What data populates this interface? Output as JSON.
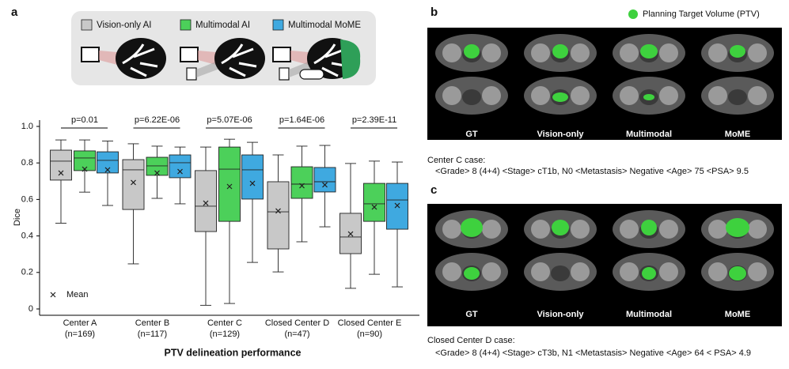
{
  "chart_data": {
    "type": "box",
    "ylabel": "Dice",
    "xlabel": "PTV delineation performance",
    "categories": [
      "Center A",
      "Center B",
      "Center C",
      "Closed Center D",
      "Closed Center E"
    ],
    "category_counts": [
      "(n=169)",
      "(n=117)",
      "(n=129)",
      "(n=47)",
      "(n=90)"
    ],
    "pvalues": [
      "p=0.01",
      "p=6.22E-06",
      "p=5.07E-06",
      "p=1.64E-06",
      "p=2.39E-11"
    ],
    "mean_legend": "Mean",
    "ylim": [
      0,
      1.0
    ],
    "yticks": [
      0,
      0.2,
      0.4,
      0.6,
      0.8,
      {
        "value": 1,
        "label": "1.0"
      }
    ],
    "series": [
      {
        "name": "Vision-only AI",
        "color": "#c8c8c8",
        "whisker_low": [
          0.47,
          0.247,
          0.02,
          0.203,
          0.113
        ],
        "q1": [
          0.706,
          0.545,
          0.424,
          0.329,
          0.303
        ],
        "median": [
          0.81,
          0.762,
          0.563,
          0.532,
          0.394
        ],
        "q3": [
          0.87,
          0.818,
          0.758,
          0.697,
          0.524
        ],
        "whisker_high": [
          0.926,
          0.905,
          0.887,
          0.844,
          0.797
        ],
        "mean": [
          0.745,
          0.693,
          0.58,
          0.537,
          0.411
        ]
      },
      {
        "name": "Multimodal AI",
        "color": "#4cd05a",
        "whisker_low": [
          0.64,
          0.606,
          0.03,
          0.368,
          0.19
        ],
        "q1": [
          0.758,
          0.732,
          0.48,
          0.606,
          0.48
        ],
        "median": [
          0.827,
          0.784,
          0.766,
          0.684,
          0.576
        ],
        "q3": [
          0.866,
          0.831,
          0.887,
          0.779,
          0.688
        ],
        "whisker_high": [
          0.926,
          0.892,
          0.93,
          0.892,
          0.81
        ],
        "mean": [
          0.766,
          0.745,
          0.671,
          0.675,
          0.558
        ]
      },
      {
        "name": "Multimodal MoME",
        "color": "#3fa9e0",
        "whisker_low": [
          0.567,
          0.576,
          0.255,
          0.45,
          0.121
        ],
        "q1": [
          0.745,
          0.719,
          0.602,
          0.641,
          0.437
        ],
        "median": [
          0.814,
          0.801,
          0.762,
          0.697,
          0.597
        ],
        "q3": [
          0.861,
          0.844,
          0.844,
          0.775,
          0.688
        ],
        "whisker_high": [
          0.92,
          0.887,
          0.913,
          0.896,
          0.805
        ],
        "mean": [
          0.762,
          0.753,
          0.688,
          0.68,
          0.567
        ]
      }
    ]
  },
  "figure": {
    "panel_labels": [
      "a",
      "b",
      "c"
    ],
    "ptv_legend": "Planning Target Volume (PTV)",
    "image_columns": [
      "GT",
      "Vision-only",
      "Multimodal",
      "MoME"
    ],
    "cases": [
      {
        "title": "Center C case:",
        "details": "<Grade> 8 (4+4) <Stage> cT1b, N0 <Metastasis> Negative <Age> 75 <PSA> 9.5"
      },
      {
        "title": "Closed Center D case:",
        "details": "<Grade> 8 (4+4) <Stage> cT3b, N1 <Metastasis> Negative <Age> 64 < PSA> 4.9"
      }
    ]
  }
}
